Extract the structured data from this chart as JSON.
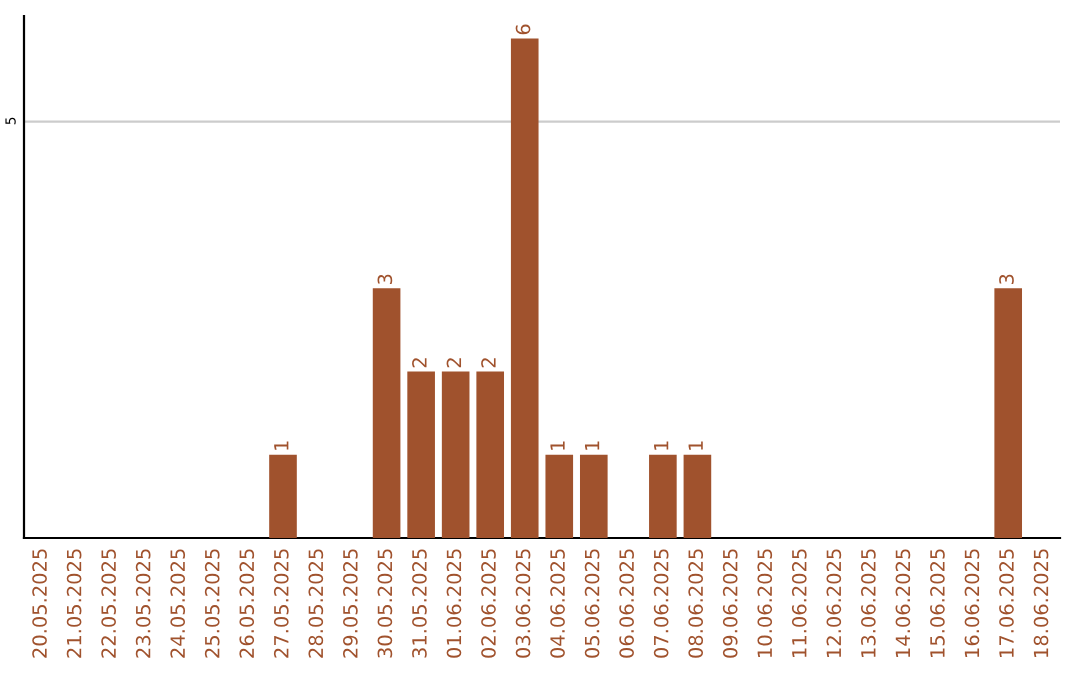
{
  "chart_data": {
    "type": "bar",
    "categories": [
      "20.05.2025",
      "21.05.2025",
      "22.05.2025",
      "23.05.2025",
      "24.05.2025",
      "25.05.2025",
      "26.05.2025",
      "27.05.2025",
      "28.05.2025",
      "29.05.2025",
      "30.05.2025",
      "31.05.2025",
      "01.06.2025",
      "02.06.2025",
      "03.06.2025",
      "04.06.2025",
      "05.06.2025",
      "06.06.2025",
      "07.06.2025",
      "08.06.2025",
      "09.06.2025",
      "10.06.2025",
      "11.06.2025",
      "12.06.2025",
      "13.06.2025",
      "14.06.2025",
      "15.06.2025",
      "16.06.2025",
      "17.06.2025",
      "18.06.2025"
    ],
    "values": [
      0,
      0,
      0,
      0,
      0,
      0,
      0,
      1,
      0,
      0,
      3,
      2,
      2,
      2,
      6,
      1,
      1,
      0,
      1,
      1,
      0,
      0,
      0,
      0,
      0,
      0,
      0,
      0,
      3,
      0
    ],
    "value_labels": [
      null,
      null,
      null,
      null,
      null,
      null,
      null,
      "1",
      null,
      null,
      "3",
      "2",
      "2",
      "2",
      "6",
      "1",
      "1",
      null,
      "1",
      "1",
      null,
      null,
      null,
      null,
      null,
      null,
      null,
      null,
      "3",
      null
    ],
    "color": "#a0522d",
    "ylim": [
      0,
      6.27
    ],
    "yticks": [
      5
    ],
    "grid": "y"
  }
}
